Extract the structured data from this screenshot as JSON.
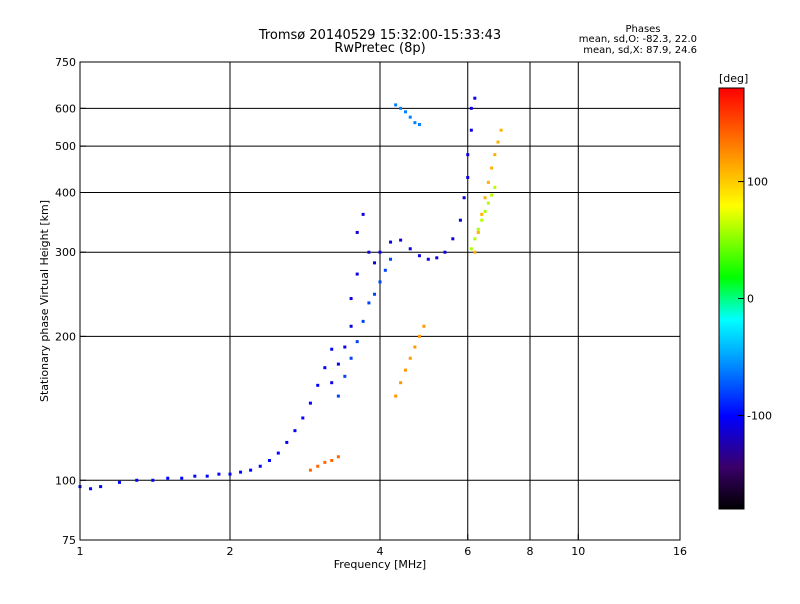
{
  "chart_data": {
    "type": "scatter",
    "title": "Tromsø 20140529 15:32:00-15:33:43",
    "subtitle": "RwPretec (8p)",
    "legend_box": {
      "heading": "Phases",
      "line1": "mean, sd,O: -82.3, 22.0",
      "line2": "mean, sd,X:  87.9, 24.6"
    },
    "xlabel": "Frequency [MHz]",
    "ylabel": "Stationary phase Virtual Height [km]",
    "x_scale": "log",
    "y_scale": "log",
    "xlim": [
      1,
      16
    ],
    "ylim": [
      75,
      750
    ],
    "x_ticks": [
      1,
      2,
      4,
      6,
      8,
      10,
      16
    ],
    "x_tick_labels": [
      "1",
      "2",
      "4",
      "6",
      "8",
      "10",
      "16"
    ],
    "x_gridlines": [
      2,
      4,
      6,
      8,
      10
    ],
    "y_ticks": [
      75,
      100,
      200,
      300,
      400,
      500,
      600,
      750
    ],
    "y_tick_labels": [
      "75",
      "100",
      "200",
      "300",
      "400",
      "500",
      "600",
      "750"
    ],
    "y_gridlines": [
      100,
      200,
      300,
      400,
      500,
      600
    ],
    "grid": true,
    "colorbar": {
      "label": "[deg]",
      "range": [
        -180,
        180
      ],
      "ticks": [
        -100,
        0,
        100
      ],
      "tick_labels": [
        "-100",
        "0",
        "100"
      ],
      "colormap": "rainbow"
    },
    "series": [
      {
        "color_value": -100,
        "x": [
          1.0,
          1.05,
          1.1,
          1.2,
          1.3,
          1.4,
          1.5,
          1.6,
          1.7,
          1.8,
          1.9,
          2.0,
          2.1,
          2.2,
          2.3,
          2.4,
          2.5,
          2.6,
          2.7,
          2.8,
          2.9,
          3.0,
          3.1,
          3.2
        ],
        "y": [
          97,
          96,
          97,
          99,
          100,
          100,
          101,
          101,
          102,
          102,
          103,
          103,
          104,
          105,
          107,
          110,
          114,
          120,
          127,
          135,
          145,
          158,
          172,
          188
        ]
      },
      {
        "color_value": -110,
        "x": [
          3.2,
          3.3,
          3.4,
          3.5,
          3.5,
          3.6,
          3.6,
          3.7,
          3.8,
          3.9,
          4.0,
          4.2,
          4.4,
          4.6,
          4.8,
          5.0,
          5.2,
          5.4,
          5.6,
          5.8,
          5.9,
          6.0,
          6.0,
          6.1,
          6.1,
          6.2
        ],
        "y": [
          160,
          175,
          190,
          210,
          240,
          270,
          330,
          360,
          300,
          285,
          300,
          315,
          318,
          305,
          295,
          290,
          292,
          300,
          320,
          350,
          390,
          430,
          480,
          540,
          600,
          630
        ]
      },
      {
        "color_value": -80,
        "x": [
          3.3,
          3.4,
          3.5,
          3.6,
          3.7,
          3.8,
          3.9,
          4.0,
          4.1,
          4.2
        ],
        "y": [
          150,
          165,
          180,
          195,
          215,
          235,
          245,
          260,
          275,
          290
        ]
      },
      {
        "color_value": -60,
        "x": [
          4.3,
          4.4,
          4.5,
          4.6,
          4.7,
          4.8
        ],
        "y": [
          610,
          600,
          590,
          575,
          560,
          555
        ]
      },
      {
        "color_value": 110,
        "x": [
          6.2,
          6.3,
          6.4,
          6.5,
          6.6,
          6.7,
          6.8,
          6.9,
          7.0
        ],
        "y": [
          300,
          330,
          360,
          390,
          420,
          450,
          480,
          510,
          540
        ]
      },
      {
        "color_value": 60,
        "x": [
          6.1,
          6.2,
          6.3,
          6.4,
          6.5,
          6.6,
          6.7,
          6.8
        ],
        "y": [
          305,
          320,
          335,
          350,
          365,
          380,
          395,
          410
        ]
      },
      {
        "color_value": 120,
        "x": [
          4.3,
          4.4,
          4.5,
          4.6,
          4.7,
          4.8,
          4.9
        ],
        "y": [
          150,
          160,
          170,
          180,
          190,
          200,
          210
        ]
      },
      {
        "color_value": 140,
        "x": [
          2.9,
          3.0,
          3.1,
          3.2,
          3.3
        ],
        "y": [
          105,
          107,
          109,
          110,
          112
        ]
      }
    ]
  }
}
